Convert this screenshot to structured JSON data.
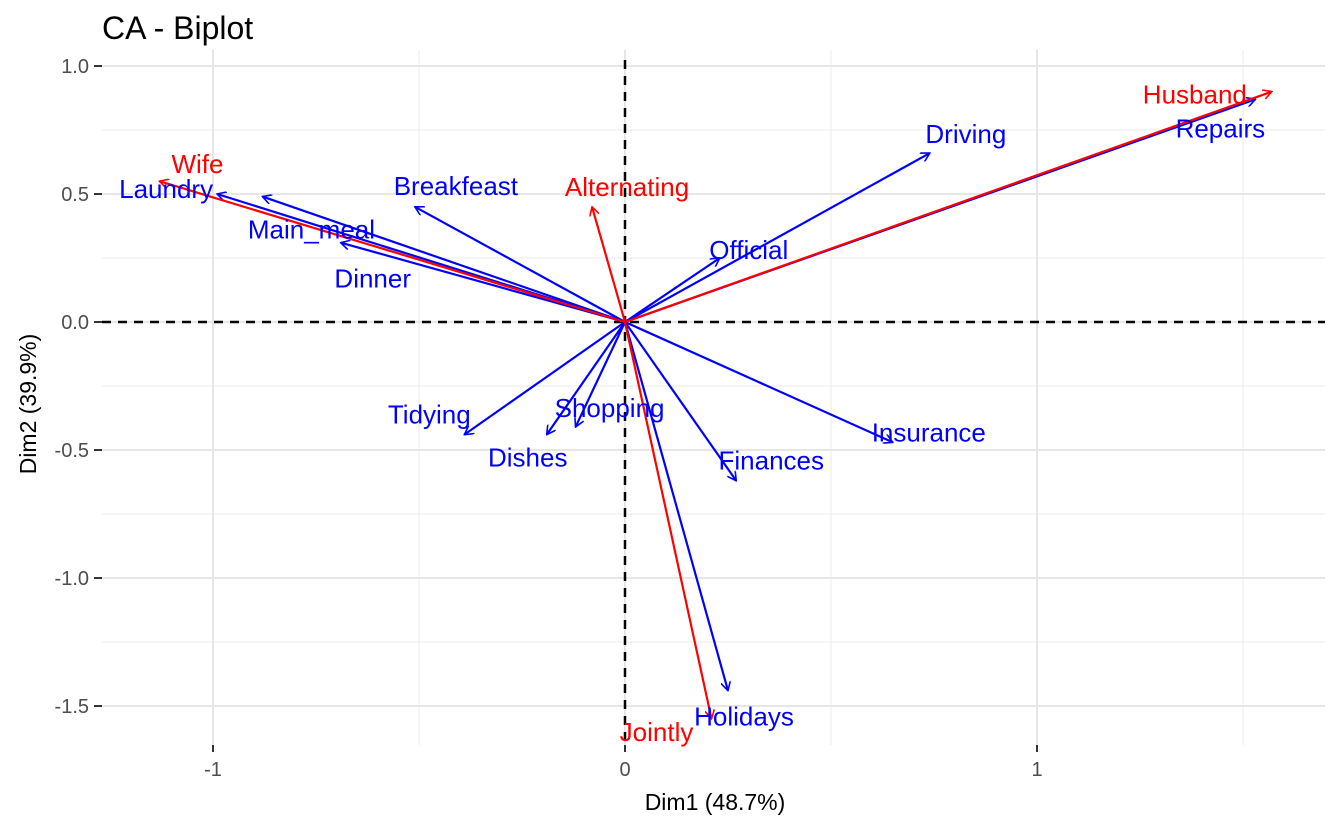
{
  "chart_data": {
    "type": "scatter",
    "subtype": "biplot",
    "title": "CA - Biplot",
    "xlabel": "Dim1 (48.7%)",
    "ylabel": "Dim2 (39.9%)",
    "xlim": [
      -1.25,
      1.72
    ],
    "ylim": [
      -1.7,
      1.05
    ],
    "xticks": [
      {
        "value": -1,
        "label": "-1"
      },
      {
        "value": 0,
        "label": "0"
      },
      {
        "value": 1,
        "label": "1"
      }
    ],
    "yticks": [
      {
        "value": 1.0,
        "label": "1.0"
      },
      {
        "value": 0.5,
        "label": "0.5"
      },
      {
        "value": 0.0,
        "label": "0.0"
      },
      {
        "value": -0.5,
        "label": "-0.5"
      },
      {
        "value": -1.0,
        "label": "-1.0"
      },
      {
        "value": -1.5,
        "label": "-1.5"
      }
    ],
    "grid": true,
    "origin_lines": true,
    "legend": "none",
    "series": [
      {
        "color": "#0000ff",
        "points": [
          {
            "label": "Laundry",
            "x": -0.99,
            "y": 0.5
          },
          {
            "label": "Main_meal",
            "x": -0.88,
            "y": 0.49
          },
          {
            "label": "Dinner",
            "x": -0.69,
            "y": 0.31
          },
          {
            "label": "Breakfeast",
            "x": -0.51,
            "y": 0.45
          },
          {
            "label": "Tidying",
            "x": -0.39,
            "y": -0.44
          },
          {
            "label": "Dishes",
            "x": -0.19,
            "y": -0.44
          },
          {
            "label": "Shopping",
            "x": -0.12,
            "y": -0.41
          },
          {
            "label": "Official",
            "x": 0.23,
            "y": 0.25
          },
          {
            "label": "Driving",
            "x": 0.74,
            "y": 0.66
          },
          {
            "label": "Insurance",
            "x": 0.65,
            "y": -0.47
          },
          {
            "label": "Finances",
            "x": 0.27,
            "y": -0.62
          },
          {
            "label": "Holidays",
            "x": 0.25,
            "y": -1.44
          },
          {
            "label": "Repairs",
            "x": 1.53,
            "y": 0.87
          }
        ]
      },
      {
        "color": "#ff0000",
        "points": [
          {
            "label": "Wife",
            "x": -1.13,
            "y": 0.55
          },
          {
            "label": "Alternating",
            "x": -0.08,
            "y": 0.45
          },
          {
            "label": "Jointly",
            "x": 0.21,
            "y": -1.55
          },
          {
            "label": "Husband",
            "x": 1.57,
            "y": 0.9
          }
        ]
      }
    ]
  }
}
